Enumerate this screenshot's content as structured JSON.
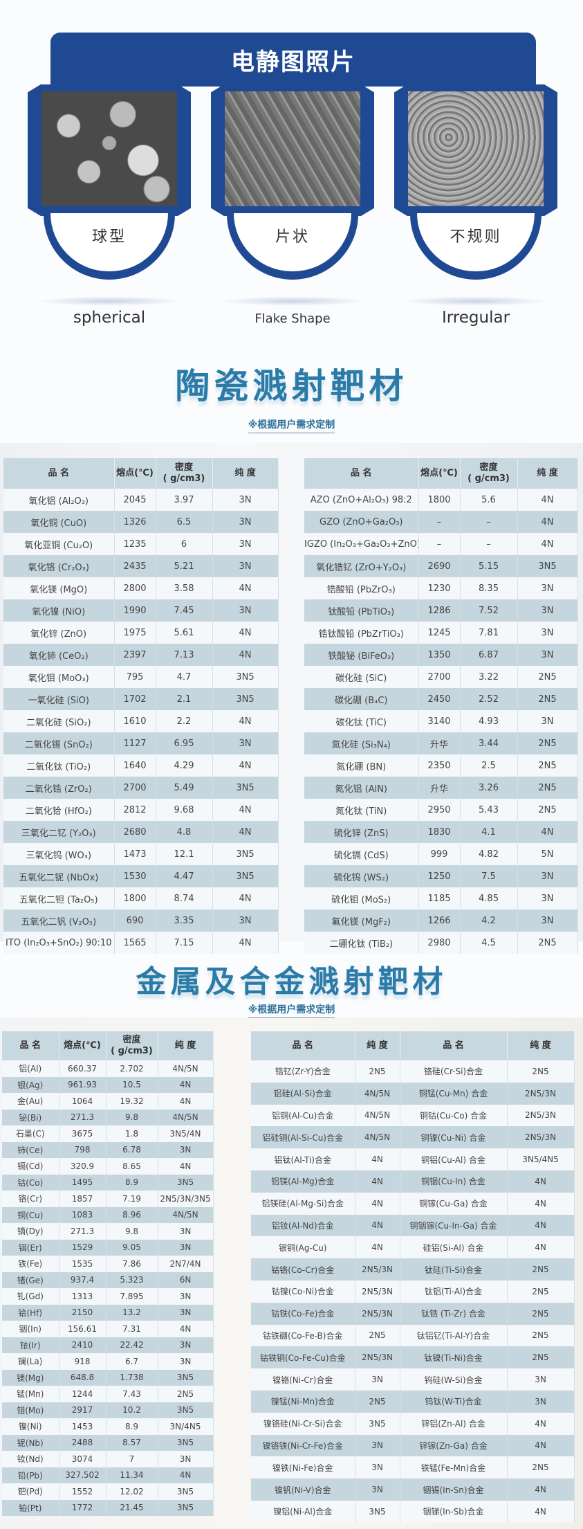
{
  "sem": {
    "title": "电静图照片",
    "accent": "#1f4a93",
    "cards": [
      {
        "cn": "球型",
        "en": "spherical"
      },
      {
        "cn": "片状",
        "en": "Flake Shape"
      },
      {
        "cn": "不规则",
        "en": "Irregular"
      }
    ]
  },
  "ceramic": {
    "title": "陶瓷溅射靶材",
    "subtitle": "※根据用户需求定制",
    "headers": [
      "品 名",
      "熔点(℃)",
      "密度\n( g/cm3)",
      "纯 度"
    ],
    "left_rows": [
      [
        "氧化铝 (Al₂O₃)",
        "2045",
        "3.97",
        "3N"
      ],
      [
        "氧化铜 (CuO)",
        "1326",
        "6.5",
        "3N"
      ],
      [
        "氧化亚铜 (Cu₂O)",
        "1235",
        "6",
        "3N"
      ],
      [
        "氧化铬 (Cr₂O₃)",
        "2435",
        "5.21",
        "3N"
      ],
      [
        "氧化镁 (MgO)",
        "2800",
        "3.58",
        "4N"
      ],
      [
        "氧化镍 (NiO)",
        "1990",
        "7.45",
        "3N"
      ],
      [
        "氧化锌 (ZnO)",
        "1975",
        "5.61",
        "4N"
      ],
      [
        "氧化铈 (CeO₂)",
        "2397",
        "7.13",
        "4N"
      ],
      [
        "氧化钼 (MoO₃)",
        "795",
        "4.7",
        "3N5"
      ],
      [
        "一氧化硅 (SiO)",
        "1702",
        "2.1",
        "3N5"
      ],
      [
        "二氧化硅 (SiO₂)",
        "1610",
        "2.2",
        "4N"
      ],
      [
        "二氧化锡 (SnO₂)",
        "1127",
        "6.95",
        "3N"
      ],
      [
        "二氧化钛 (TiO₂)",
        "1640",
        "4.29",
        "4N"
      ],
      [
        "二氧化锆 (ZrO₂)",
        "2700",
        "5.49",
        "3N5"
      ],
      [
        "二氧化铪 (HfO₂)",
        "2812",
        "9.68",
        "4N"
      ],
      [
        "三氧化二钇 (Y₂O₃)",
        "2680",
        "4.8",
        "4N"
      ],
      [
        "三氧化钨 (WO₃)",
        "1473",
        "12.1",
        "3N5"
      ],
      [
        "五氧化二铌 (NbOx)",
        "1530",
        "4.47",
        "3N5"
      ],
      [
        "五氧化二钽 (Ta₂O₅)",
        "1800",
        "8.74",
        "4N"
      ],
      [
        "五氧化二钒 (V₂O₅)",
        "690",
        "3.35",
        "3N"
      ],
      [
        "ITO (In₂O₃+SnO₂) 90:10",
        "1565",
        "7.15",
        "4N"
      ]
    ],
    "right_rows": [
      [
        "AZO (ZnO+Al₂O₃) 98:2",
        "1800",
        "5.6",
        "4N"
      ],
      [
        "GZO (ZnO+Ga₂O₃)",
        "–",
        "–",
        "4N"
      ],
      [
        "IGZO (In₂O₃+Ga₂O₃+ZnO)",
        "–",
        "–",
        "4N"
      ],
      [
        "氧化锆钇 (ZrO+Y₂O₃)",
        "2690",
        "5.15",
        "3N5"
      ],
      [
        "锆酸铅 (PbZrO₃)",
        "1230",
        "8.35",
        "3N"
      ],
      [
        "钛酸铅 (PbTiO₃)",
        "1286",
        "7.52",
        "3N"
      ],
      [
        "锆钛酸铅 (PbZrTiO₃)",
        "1245",
        "7.81",
        "3N"
      ],
      [
        "铁酸铋 (BiFeO₃)",
        "1350",
        "6.87",
        "3N"
      ],
      [
        "碳化硅 (SiC)",
        "2700",
        "3.22",
        "2N5"
      ],
      [
        "碳化硼 (B₄C)",
        "2450",
        "2.52",
        "2N5"
      ],
      [
        "碳化钛 (TiC)",
        "3140",
        "4.93",
        "3N"
      ],
      [
        "氮化硅 (Si₃N₄)",
        "升华",
        "3.44",
        "2N5"
      ],
      [
        "氮化硼 (BN)",
        "2350",
        "2.5",
        "2N5"
      ],
      [
        "氮化铝 (AlN)",
        "升华",
        "3.26",
        "2N5"
      ],
      [
        "氮化钛 (TiN)",
        "2950",
        "5.43",
        "2N5"
      ],
      [
        "硫化锌 (ZnS)",
        "1830",
        "4.1",
        "4N"
      ],
      [
        "硫化镉 (CdS)",
        "999",
        "4.82",
        "5N"
      ],
      [
        "硫化钨 (WS₂)",
        "1250",
        "7.5",
        "3N"
      ],
      [
        "硫化钼 (MoS₂)",
        "1185",
        "4.85",
        "3N"
      ],
      [
        "氟化镁 (MgF₂)",
        "1266",
        "4.2",
        "3N"
      ],
      [
        "二硼化钛 (TiB₂)",
        "2980",
        "4.5",
        "2N5"
      ]
    ]
  },
  "metal": {
    "title": "金属及合金溅射靶材",
    "subtitle": "※根据用户需求定制",
    "headers": [
      "品 名",
      "熔点(℃)",
      "密度\n( g/cm3)",
      "纯 度"
    ],
    "rows": [
      [
        "铝(Al)",
        "660.37",
        "2.702",
        "4N/5N"
      ],
      [
        "银(Ag)",
        "961.93",
        "10.5",
        "4N"
      ],
      [
        "金(Au)",
        "1064",
        "19.32",
        "4N"
      ],
      [
        "铋(Bi)",
        "271.3",
        "9.8",
        "4N/5N"
      ],
      [
        "石墨(C)",
        "3675",
        "1.8",
        "3N5/4N"
      ],
      [
        "铈(Ce)",
        "798",
        "6.78",
        "3N"
      ],
      [
        "镉(Cd)",
        "320.9",
        "8.65",
        "4N"
      ],
      [
        "钴(Co)",
        "1495",
        "8.9",
        "3N5"
      ],
      [
        "铬(Cr)",
        "1857",
        "7.19",
        "2N5/3N/3N5"
      ],
      [
        "铜(Cu)",
        "1083",
        "8.96",
        "4N/5N"
      ],
      [
        "镝(Dy)",
        "271.3",
        "9.8",
        "3N"
      ],
      [
        "铒(Er)",
        "1529",
        "9.05",
        "3N"
      ],
      [
        "铁(Fe)",
        "1535",
        "7.86",
        "2N7/4N"
      ],
      [
        "锗(Ge)",
        "937.4",
        "5.323",
        "6N"
      ],
      [
        "钆(Gd)",
        "1313",
        "7.895",
        "3N"
      ],
      [
        "铪(Hf)",
        "2150",
        "13.2",
        "3N"
      ],
      [
        "铟(In)",
        "156.61",
        "7.31",
        "4N"
      ],
      [
        "铱(Ir)",
        "2410",
        "22.42",
        "3N"
      ],
      [
        "镧(La)",
        "918",
        "6.7",
        "3N"
      ],
      [
        "镁(Mg)",
        "648.8",
        "1.738",
        "3N5"
      ],
      [
        "锰(Mn)",
        "1244",
        "7.43",
        "2N5"
      ],
      [
        "钼(Mo)",
        "2917",
        "10.2",
        "3N5"
      ],
      [
        "镍(Ni)",
        "1453",
        "8.9",
        "3N/4N5"
      ],
      [
        "铌(Nb)",
        "2488",
        "8.57",
        "3N5"
      ],
      [
        "钕(Nd)",
        "3074",
        "7",
        "3N"
      ],
      [
        "铅(Pb)",
        "327.502",
        "11.34",
        "4N"
      ],
      [
        "钯(Pd)",
        "1552",
        "12.02",
        "3N5"
      ],
      [
        "铂(Pt)",
        "1772",
        "21.45",
        "3N5"
      ]
    ]
  },
  "alloy": {
    "headers": [
      "品 名",
      "纯 度",
      "品 名",
      "纯 度"
    ],
    "rows": [
      [
        "锆钇(Zr-Y)合金",
        "2N5",
        "铬硅(Cr-Si)合金",
        "2N5"
      ],
      [
        "铝硅(Al-Si)合金",
        "4N/5N",
        "铜锰(Cu-Mn) 合金",
        "2N5/3N"
      ],
      [
        "铝铜(Al-Cu)合金",
        "4N/5N",
        "铜钴(Cu-Co) 合金",
        "2N5/3N"
      ],
      [
        "铝硅铜(Al-Si-Cu)合金",
        "4N/5N",
        "铜镍(Cu-Ni) 合金",
        "2N5/3N"
      ],
      [
        "铝钛(Al-Ti)合金",
        "4N",
        "铜铝(Cu-Al) 合金",
        "3N5/4N5"
      ],
      [
        "铝镁(Al-Mg)合金",
        "4N",
        "铜铟(Cu-In) 合金",
        "4N"
      ],
      [
        "铝镁硅(Al-Mg-Si)合金",
        "4N",
        "铜镓(Cu-Ga) 合金",
        "4N"
      ],
      [
        "铝钕(Al-Nd)合金",
        "4N",
        "铜铟镓(Cu-In-Ga) 合金",
        "4N"
      ],
      [
        "银铜(Ag-Cu)",
        "4N",
        "硅铝(Si-Al) 合金",
        "4N"
      ],
      [
        "钴铬(Co-Cr)合金",
        "2N5/3N",
        "钛硅(Ti-Si)合金",
        "2N5"
      ],
      [
        "钴镍(Co-Ni)合金",
        "2N5/3N",
        "钛铝(Ti-Al)合金",
        "2N5"
      ],
      [
        "钴铁(Co-Fe)合金",
        "2N5/3N",
        "钛锆 (Ti-Zr) 合金",
        "2N5"
      ],
      [
        "钴铁硼(Co-Fe-B)合金",
        "2N5",
        "钛铝钇(Ti-Al-Y)合金",
        "2N5"
      ],
      [
        "钴铁铜(Co-Fe-Cu)合金",
        "2N5/3N",
        "钛镍(Ti-Ni)合金",
        "2N5"
      ],
      [
        "镍铬(Ni-Cr)合金",
        "3N",
        "钨硅(W-Si)合金",
        "3N"
      ],
      [
        "镍锰(Ni-Mn)合金",
        "2N5",
        "钨钛(W-Ti)合金",
        "3N"
      ],
      [
        "镍铬硅(Ni-Cr-Si)合金",
        "3N5",
        "锌铝(Zn-Al) 合金",
        "4N"
      ],
      [
        "镍铬铁(Ni-Cr-Fe)合金",
        "3N",
        "锌镓(Zn-Ga) 合金",
        "4N"
      ],
      [
        "镍铁(Ni-Fe)合金",
        "3N",
        "铁锰(Fe-Mn)合金",
        "2N5"
      ],
      [
        "镍钒(Ni-V)合金",
        "3N",
        "铟锡(In-Sn)合金",
        "4N"
      ],
      [
        "镍铝(Ni-Al)合金",
        "3N5",
        "铟锑(In-Sb)合金",
        "4N"
      ]
    ]
  },
  "colors": {
    "table_header": "#c8d8e0",
    "row_alt": "#c6d6de",
    "title": "#2b7ba8"
  }
}
